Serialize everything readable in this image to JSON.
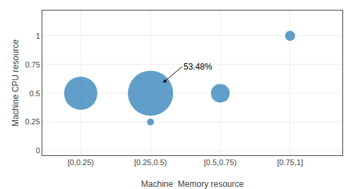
{
  "chart_data": {
    "type": "bubble",
    "x": [
      1,
      2,
      2,
      3,
      4
    ],
    "values": [
      0.5,
      0.25,
      0.5,
      0.5,
      1
    ],
    "sizes": [
      600,
      30,
      1100,
      200,
      60
    ],
    "xlim": [
      0.45,
      4.75
    ],
    "ylim": [
      -0.04,
      1.22
    ],
    "xticks": [
      {
        "value": 1,
        "label": "[0,0.25)"
      },
      {
        "value": 2,
        "label": "[0.25,0.5)"
      },
      {
        "value": 3,
        "label": "[0.5,0.75)"
      },
      {
        "value": 4,
        "label": "[0.75,1]"
      }
    ],
    "yticks": [
      0,
      0.25,
      0.5,
      0.75,
      1
    ],
    "xlabel": "Machine  Memory resource",
    "ylabel": "Machine CPU resource",
    "annotations": [
      {
        "text": "53.48%",
        "x": 2,
        "y": 0.5
      }
    ],
    "grid": true
  }
}
